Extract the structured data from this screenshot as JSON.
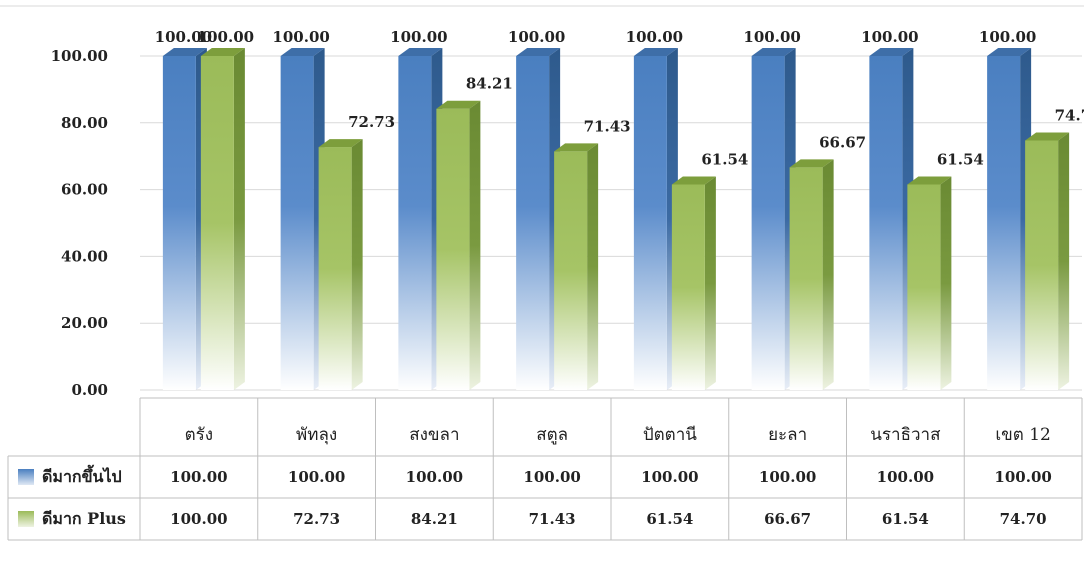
{
  "chart_data": {
    "type": "bar",
    "categories": [
      "ตรัง",
      "พัทลุง",
      "สงขลา",
      "สตูล",
      "ปัตตานี",
      "ยะลา",
      "นราธิวาส",
      "เขต 12"
    ],
    "series": [
      {
        "name": "ดีมากขึ้นไป",
        "color": "#4f81bd",
        "values": [
          100.0,
          100.0,
          100.0,
          100.0,
          100.0,
          100.0,
          100.0,
          100.0
        ],
        "labels": [
          "100.00",
          "100.00",
          "100.00",
          "100.00",
          "100.00",
          "100.00",
          "100.00",
          "100.00"
        ]
      },
      {
        "name": "ดีมาก Plus",
        "color": "#9bbb59",
        "values": [
          100.0,
          72.73,
          84.21,
          71.43,
          61.54,
          66.67,
          61.54,
          74.7
        ],
        "labels": [
          "100.00",
          "72.73",
          "84.21",
          "71.43",
          "61.54",
          "66.67",
          "61.54",
          "74.70"
        ]
      }
    ],
    "yticks": [
      "0.00",
      "20.00",
      "40.00",
      "60.00",
      "80.00",
      "100.00"
    ],
    "ylim": [
      0,
      100
    ],
    "grid": true,
    "legend": "data-table",
    "style": "3d-column-with-data-table"
  }
}
